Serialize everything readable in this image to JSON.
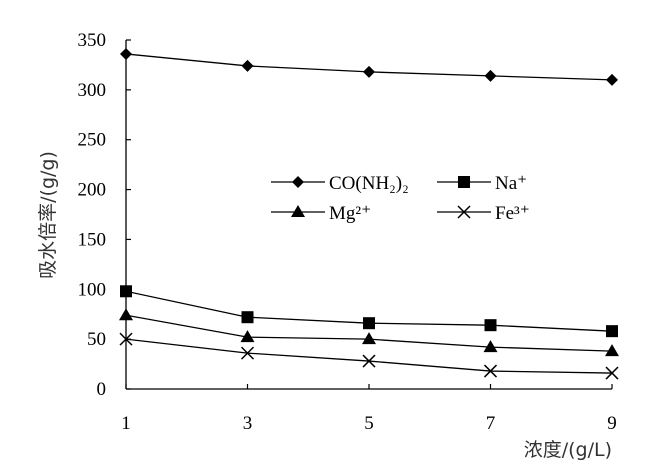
{
  "chart_data": {
    "type": "line",
    "title": "",
    "xlabel": "浓度/(g/L)",
    "ylabel": "吸水倍率/(g/g)",
    "x": [
      1,
      3,
      5,
      7,
      9
    ],
    "xticks": [
      "1",
      "3",
      "5",
      "7",
      "9"
    ],
    "ylim": [
      0,
      350
    ],
    "yticks": [
      "0",
      "50",
      "100",
      "150",
      "200",
      "250",
      "300",
      "350"
    ],
    "grid": false,
    "legend": "center",
    "series": [
      {
        "name": "CO(NH₂)₂",
        "marker": "diamond",
        "values": [
          336,
          324,
          318,
          314,
          310
        ]
      },
      {
        "name": "Na⁺",
        "marker": "square",
        "values": [
          98,
          72,
          66,
          64,
          58
        ]
      },
      {
        "name": "Mg²⁺",
        "marker": "triangle",
        "values": [
          74,
          52,
          50,
          42,
          38
        ]
      },
      {
        "name": "Fe³⁺",
        "marker": "x",
        "values": [
          50,
          36,
          28,
          18,
          16
        ]
      }
    ]
  }
}
